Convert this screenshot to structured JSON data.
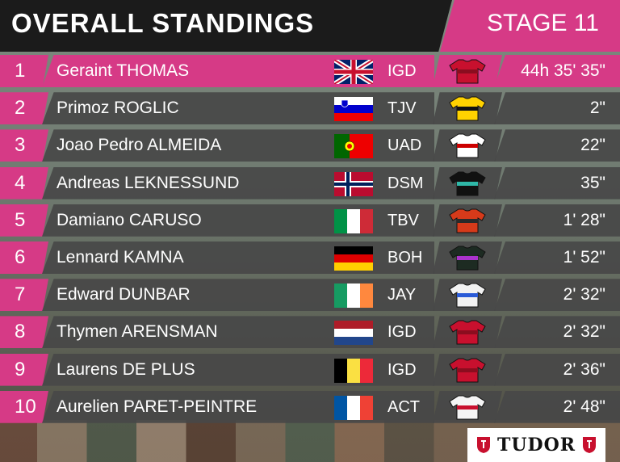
{
  "header": {
    "title": "OVERALL STANDINGS",
    "stage": "STAGE 11"
  },
  "colors": {
    "accent": "#d63a86",
    "bar": "#484848"
  },
  "sponsor": {
    "name": "TUDOR"
  },
  "standings": [
    {
      "pos": "1",
      "name": "Geraint THOMAS",
      "country": "gb",
      "team": "IGD",
      "jersey": "ineos",
      "time": "44h 35' 35\""
    },
    {
      "pos": "2",
      "name": "Primoz ROGLIC",
      "country": "si",
      "team": "TJV",
      "jersey": "jumbo",
      "time": "2\""
    },
    {
      "pos": "3",
      "name": "Joao Pedro ALMEIDA",
      "country": "pt",
      "team": "UAD",
      "jersey": "uae",
      "time": "22\""
    },
    {
      "pos": "4",
      "name": "Andreas LEKNESSUND",
      "country": "no",
      "team": "DSM",
      "jersey": "dsm",
      "time": "35\""
    },
    {
      "pos": "5",
      "name": "Damiano CARUSO",
      "country": "it",
      "team": "TBV",
      "jersey": "bahrain",
      "time": "1' 28\""
    },
    {
      "pos": "6",
      "name": "Lennard KAMNA",
      "country": "de",
      "team": "BOH",
      "jersey": "bora",
      "time": "1' 52\""
    },
    {
      "pos": "7",
      "name": "Edward DUNBAR",
      "country": "ie",
      "team": "JAY",
      "jersey": "jayco",
      "time": "2' 32\""
    },
    {
      "pos": "8",
      "name": "Thymen ARENSMAN",
      "country": "nl",
      "team": "IGD",
      "jersey": "ineos",
      "time": "2' 32\""
    },
    {
      "pos": "9",
      "name": "Laurens DE PLUS",
      "country": "be",
      "team": "IGD",
      "jersey": "ineos",
      "time": "2' 36\""
    },
    {
      "pos": "10",
      "name": "Aurelien PARET-PEINTRE",
      "country": "fr",
      "team": "ACT",
      "jersey": "ag2r",
      "time": "2' 48\""
    }
  ]
}
